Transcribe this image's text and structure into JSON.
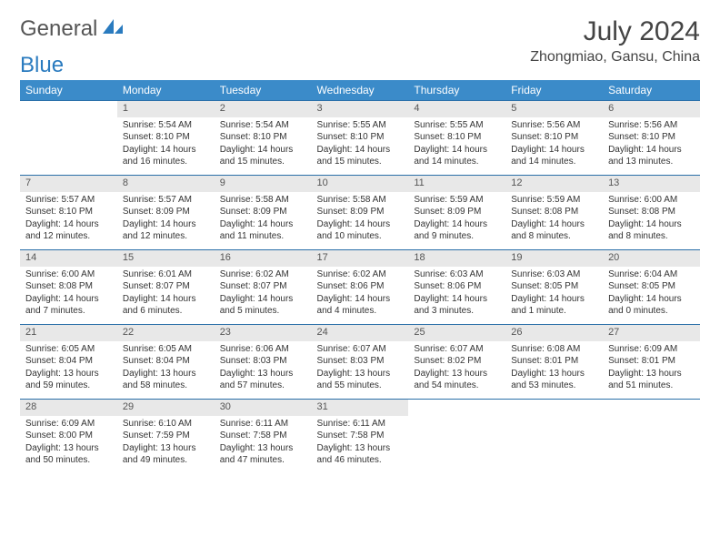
{
  "logo": {
    "text1": "General",
    "text2": "Blue",
    "color1": "#6b6b6b",
    "color2": "#2a7bbf"
  },
  "title": "July 2024",
  "location": "Zhongmiao, Gansu, China",
  "header_bg": "#3b8bc9",
  "daynum_bg": "#e8e8e8",
  "border_color": "#2a6fa8",
  "weekdays": [
    "Sunday",
    "Monday",
    "Tuesday",
    "Wednesday",
    "Thursday",
    "Friday",
    "Saturday"
  ],
  "weeks": [
    [
      null,
      {
        "n": "1",
        "sr": "5:54 AM",
        "ss": "8:10 PM",
        "dl": "14 hours and 16 minutes."
      },
      {
        "n": "2",
        "sr": "5:54 AM",
        "ss": "8:10 PM",
        "dl": "14 hours and 15 minutes."
      },
      {
        "n": "3",
        "sr": "5:55 AM",
        "ss": "8:10 PM",
        "dl": "14 hours and 15 minutes."
      },
      {
        "n": "4",
        "sr": "5:55 AM",
        "ss": "8:10 PM",
        "dl": "14 hours and 14 minutes."
      },
      {
        "n": "5",
        "sr": "5:56 AM",
        "ss": "8:10 PM",
        "dl": "14 hours and 14 minutes."
      },
      {
        "n": "6",
        "sr": "5:56 AM",
        "ss": "8:10 PM",
        "dl": "14 hours and 13 minutes."
      }
    ],
    [
      {
        "n": "7",
        "sr": "5:57 AM",
        "ss": "8:10 PM",
        "dl": "14 hours and 12 minutes."
      },
      {
        "n": "8",
        "sr": "5:57 AM",
        "ss": "8:09 PM",
        "dl": "14 hours and 12 minutes."
      },
      {
        "n": "9",
        "sr": "5:58 AM",
        "ss": "8:09 PM",
        "dl": "14 hours and 11 minutes."
      },
      {
        "n": "10",
        "sr": "5:58 AM",
        "ss": "8:09 PM",
        "dl": "14 hours and 10 minutes."
      },
      {
        "n": "11",
        "sr": "5:59 AM",
        "ss": "8:09 PM",
        "dl": "14 hours and 9 minutes."
      },
      {
        "n": "12",
        "sr": "5:59 AM",
        "ss": "8:08 PM",
        "dl": "14 hours and 8 minutes."
      },
      {
        "n": "13",
        "sr": "6:00 AM",
        "ss": "8:08 PM",
        "dl": "14 hours and 8 minutes."
      }
    ],
    [
      {
        "n": "14",
        "sr": "6:00 AM",
        "ss": "8:08 PM",
        "dl": "14 hours and 7 minutes."
      },
      {
        "n": "15",
        "sr": "6:01 AM",
        "ss": "8:07 PM",
        "dl": "14 hours and 6 minutes."
      },
      {
        "n": "16",
        "sr": "6:02 AM",
        "ss": "8:07 PM",
        "dl": "14 hours and 5 minutes."
      },
      {
        "n": "17",
        "sr": "6:02 AM",
        "ss": "8:06 PM",
        "dl": "14 hours and 4 minutes."
      },
      {
        "n": "18",
        "sr": "6:03 AM",
        "ss": "8:06 PM",
        "dl": "14 hours and 3 minutes."
      },
      {
        "n": "19",
        "sr": "6:03 AM",
        "ss": "8:05 PM",
        "dl": "14 hours and 1 minute."
      },
      {
        "n": "20",
        "sr": "6:04 AM",
        "ss": "8:05 PM",
        "dl": "14 hours and 0 minutes."
      }
    ],
    [
      {
        "n": "21",
        "sr": "6:05 AM",
        "ss": "8:04 PM",
        "dl": "13 hours and 59 minutes."
      },
      {
        "n": "22",
        "sr": "6:05 AM",
        "ss": "8:04 PM",
        "dl": "13 hours and 58 minutes."
      },
      {
        "n": "23",
        "sr": "6:06 AM",
        "ss": "8:03 PM",
        "dl": "13 hours and 57 minutes."
      },
      {
        "n": "24",
        "sr": "6:07 AM",
        "ss": "8:03 PM",
        "dl": "13 hours and 55 minutes."
      },
      {
        "n": "25",
        "sr": "6:07 AM",
        "ss": "8:02 PM",
        "dl": "13 hours and 54 minutes."
      },
      {
        "n": "26",
        "sr": "6:08 AM",
        "ss": "8:01 PM",
        "dl": "13 hours and 53 minutes."
      },
      {
        "n": "27",
        "sr": "6:09 AM",
        "ss": "8:01 PM",
        "dl": "13 hours and 51 minutes."
      }
    ],
    [
      {
        "n": "28",
        "sr": "6:09 AM",
        "ss": "8:00 PM",
        "dl": "13 hours and 50 minutes."
      },
      {
        "n": "29",
        "sr": "6:10 AM",
        "ss": "7:59 PM",
        "dl": "13 hours and 49 minutes."
      },
      {
        "n": "30",
        "sr": "6:11 AM",
        "ss": "7:58 PM",
        "dl": "13 hours and 47 minutes."
      },
      {
        "n": "31",
        "sr": "6:11 AM",
        "ss": "7:58 PM",
        "dl": "13 hours and 46 minutes."
      },
      null,
      null,
      null
    ]
  ],
  "labels": {
    "sunrise": "Sunrise:",
    "sunset": "Sunset:",
    "daylight": "Daylight:"
  }
}
